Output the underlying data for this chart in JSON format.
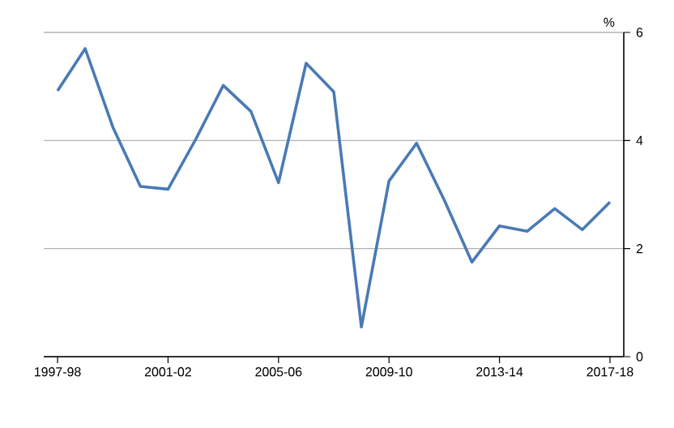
{
  "chart_data": {
    "type": "line",
    "ylabel": "%",
    "categories": [
      "1997-98",
      null,
      null,
      null,
      "2001-02",
      null,
      null,
      null,
      "2005-06",
      null,
      null,
      null,
      "2009-10",
      null,
      null,
      null,
      "2013-14",
      null,
      null,
      null,
      "2017-18"
    ],
    "series": [
      {
        "color": "#4a7ab5",
        "values": [
          4.92,
          5.7,
          4.25,
          3.15,
          3.1,
          4.02,
          5.02,
          4.54,
          3.22,
          5.43,
          4.9,
          0.55,
          3.25,
          3.95,
          2.9,
          1.75,
          2.42,
          2.32,
          2.74,
          2.35,
          2.86
        ]
      }
    ],
    "ylim": [
      0,
      6
    ],
    "yticks": [
      0,
      2,
      4,
      6
    ],
    "grid": "y",
    "marker": "none",
    "line_style": "solid"
  }
}
